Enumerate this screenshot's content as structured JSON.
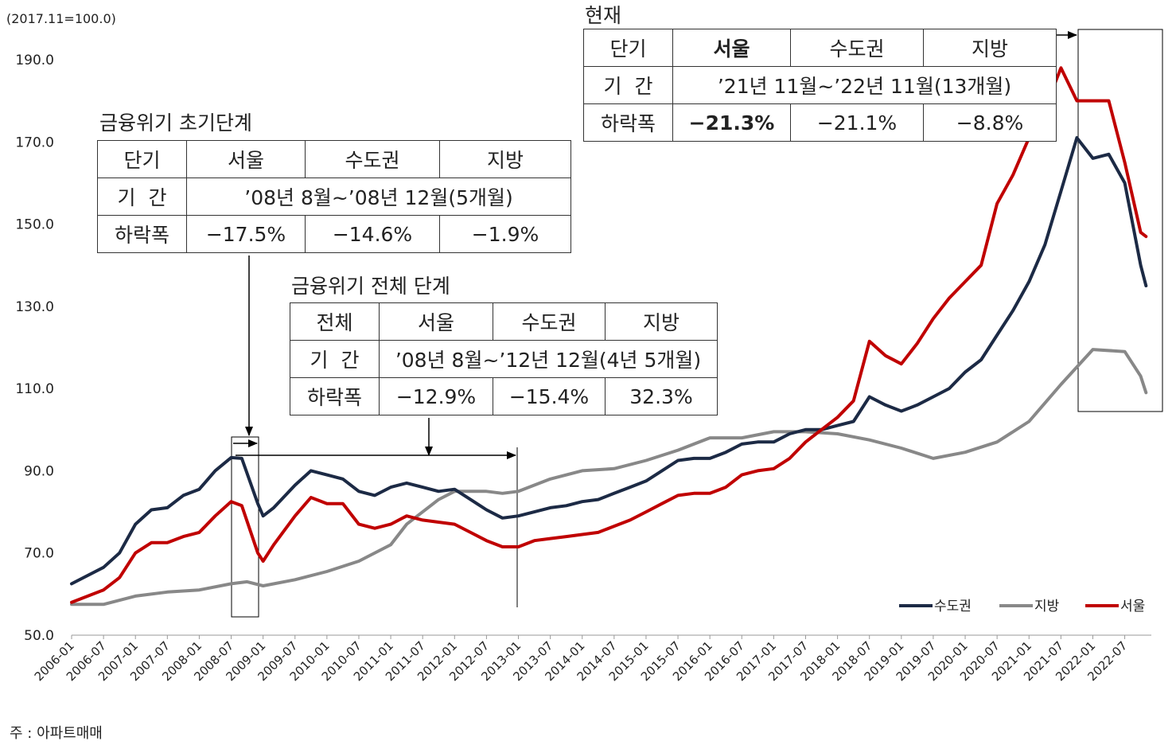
{
  "unit_note": "(2017.11=100.0)",
  "footnote": "주 : 아파트매매",
  "chart_data": {
    "type": "line",
    "ylim": [
      50,
      190
    ],
    "y_ticks": [
      "50.0",
      "70.0",
      "90.0",
      "110.0",
      "130.0",
      "150.0",
      "170.0",
      "190.0"
    ],
    "x_ticks": [
      "2006-01",
      "2006-07",
      "2007-01",
      "2007-07",
      "2008-01",
      "2008-07",
      "2009-01",
      "2009-07",
      "2010-01",
      "2010-07",
      "2011-01",
      "2011-07",
      "2012-01",
      "2012-07",
      "2013-01",
      "2013-07",
      "2014-01",
      "2014-07",
      "2015-01",
      "2015-07",
      "2016-01",
      "2016-07",
      "2017-01",
      "2017-07",
      "2018-01",
      "2018-07",
      "2019-01",
      "2019-07",
      "2020-01",
      "2020-07",
      "2021-01",
      "2021-07",
      "2022-01",
      "2022-07"
    ],
    "legend_position": "bottom-right",
    "series": [
      {
        "name": "수도권",
        "color": "#1c2a45",
        "x": [
          "2006-01",
          "2006-07",
          "2006-10",
          "2007-01",
          "2007-04",
          "2007-07",
          "2007-10",
          "2008-01",
          "2008-04",
          "2008-07",
          "2008-09",
          "2008-12",
          "2009-01",
          "2009-03",
          "2009-07",
          "2009-10",
          "2010-01",
          "2010-04",
          "2010-07",
          "2010-10",
          "2011-01",
          "2011-04",
          "2011-07",
          "2011-10",
          "2012-01",
          "2012-04",
          "2012-07",
          "2012-10",
          "2013-01",
          "2013-04",
          "2013-07",
          "2013-10",
          "2014-01",
          "2014-04",
          "2014-07",
          "2014-10",
          "2015-01",
          "2015-04",
          "2015-07",
          "2015-10",
          "2016-01",
          "2016-04",
          "2016-07",
          "2016-10",
          "2017-01",
          "2017-04",
          "2017-07",
          "2017-10",
          "2018-01",
          "2018-04",
          "2018-07",
          "2018-10",
          "2019-01",
          "2019-04",
          "2019-07",
          "2019-10",
          "2020-01",
          "2020-04",
          "2020-07",
          "2020-10",
          "2021-01",
          "2021-04",
          "2021-07",
          "2021-10",
          "2022-01",
          "2022-04",
          "2022-07",
          "2022-10",
          "2022-11"
        ],
        "values": [
          62.5,
          66.5,
          70,
          77,
          80.5,
          81,
          84,
          85.5,
          90,
          93.2,
          93,
          82,
          79,
          81,
          86.5,
          90,
          89,
          88,
          85,
          84,
          86,
          87,
          86,
          85,
          85.5,
          83,
          80.5,
          78.5,
          79,
          80,
          81,
          81.5,
          82.5,
          83,
          84.5,
          86,
          87.5,
          90,
          92.5,
          93,
          93,
          94.5,
          96.5,
          97,
          97,
          99,
          100,
          100,
          101,
          102,
          108,
          106,
          104.5,
          106,
          108,
          110,
          114,
          117,
          123,
          129,
          136,
          145,
          158,
          171,
          166,
          167,
          160,
          140,
          135
        ]
      },
      {
        "name": "지방",
        "color": "#888888",
        "x": [
          "2006-01",
          "2006-07",
          "2007-01",
          "2007-07",
          "2008-01",
          "2008-07",
          "2008-10",
          "2009-01",
          "2009-07",
          "2010-01",
          "2010-07",
          "2011-01",
          "2011-04",
          "2011-07",
          "2011-10",
          "2012-01",
          "2012-07",
          "2012-10",
          "2013-01",
          "2013-07",
          "2014-01",
          "2014-07",
          "2015-01",
          "2015-07",
          "2016-01",
          "2016-07",
          "2017-01",
          "2017-07",
          "2018-01",
          "2018-07",
          "2019-01",
          "2019-07",
          "2020-01",
          "2020-07",
          "2021-01",
          "2021-07",
          "2022-01",
          "2022-07",
          "2022-10",
          "2022-11"
        ],
        "values": [
          57.5,
          57.5,
          59.5,
          60.5,
          61,
          62.5,
          63,
          62,
          63.5,
          65.5,
          68,
          72,
          77,
          80,
          83,
          85,
          85,
          84.5,
          85,
          88,
          90,
          90.5,
          92.5,
          95,
          98,
          98,
          99.5,
          99.5,
          99,
          97.5,
          95.5,
          93,
          94.5,
          97,
          102,
          111,
          119.5,
          119,
          113,
          109
        ]
      },
      {
        "name": "서울",
        "color": "#c00000",
        "x": [
          "2006-01",
          "2006-07",
          "2006-10",
          "2007-01",
          "2007-04",
          "2007-07",
          "2007-10",
          "2008-01",
          "2008-04",
          "2008-07",
          "2008-09",
          "2008-12",
          "2009-01",
          "2009-03",
          "2009-07",
          "2009-10",
          "2010-01",
          "2010-04",
          "2010-07",
          "2010-10",
          "2011-01",
          "2011-04",
          "2011-07",
          "2011-10",
          "2012-01",
          "2012-04",
          "2012-07",
          "2012-10",
          "2013-01",
          "2013-04",
          "2013-07",
          "2013-10",
          "2014-01",
          "2014-04",
          "2014-07",
          "2014-10",
          "2015-01",
          "2015-04",
          "2015-07",
          "2015-10",
          "2016-01",
          "2016-04",
          "2016-07",
          "2016-10",
          "2017-01",
          "2017-04",
          "2017-07",
          "2017-10",
          "2018-01",
          "2018-04",
          "2018-07",
          "2018-10",
          "2019-01",
          "2019-04",
          "2019-07",
          "2019-10",
          "2020-01",
          "2020-04",
          "2020-07",
          "2020-10",
          "2021-01",
          "2021-04",
          "2021-07",
          "2021-10",
          "2022-01",
          "2022-04",
          "2022-07",
          "2022-10",
          "2022-11"
        ],
        "values": [
          58,
          61,
          64,
          70,
          72.5,
          72.5,
          74,
          75,
          79,
          82.5,
          81.5,
          70,
          68,
          72,
          79,
          83.5,
          82,
          82,
          77,
          76,
          77,
          79,
          78,
          77.5,
          77,
          75,
          73,
          71.5,
          71.5,
          73,
          73.5,
          74,
          74.5,
          75,
          76.5,
          78,
          80,
          82,
          84,
          84.5,
          84.5,
          86,
          89,
          90,
          90.5,
          93,
          97,
          100,
          103,
          107,
          121.5,
          118,
          116,
          121,
          127,
          132,
          136,
          140,
          155,
          162,
          171,
          178,
          188,
          180,
          180,
          180,
          165,
          148,
          147
        ]
      }
    ]
  },
  "boxes": {
    "crisis_early": {
      "title": "금융위기 초기단계",
      "header": [
        "단기",
        "서울",
        "수도권",
        "지방"
      ],
      "period_label": "기  간",
      "period": "’08년 8월~’08년 12월(5개월)",
      "drop_label": "하락폭",
      "drops": [
        "−17.5%",
        "−14.6%",
        "−1.9%"
      ]
    },
    "crisis_full": {
      "title": "금융위기 전체 단계",
      "header": [
        "전체",
        "서울",
        "수도권",
        "지방"
      ],
      "period_label": "기  간",
      "period": "’08년 8월~’12년 12월(4년 5개월)",
      "drop_label": "하락폭",
      "drops": [
        "−12.9%",
        "−15.4%",
        "32.3%"
      ]
    },
    "current": {
      "title": "현재",
      "header": [
        "단기",
        "서울",
        "수도권",
        "지방"
      ],
      "period_label": "기  간",
      "period": "’21년 11월~’22년 11월(13개월)",
      "drop_label": "하락폭",
      "drops": [
        "−21.3%",
        "−21.1%",
        "−8.8%"
      ]
    }
  }
}
